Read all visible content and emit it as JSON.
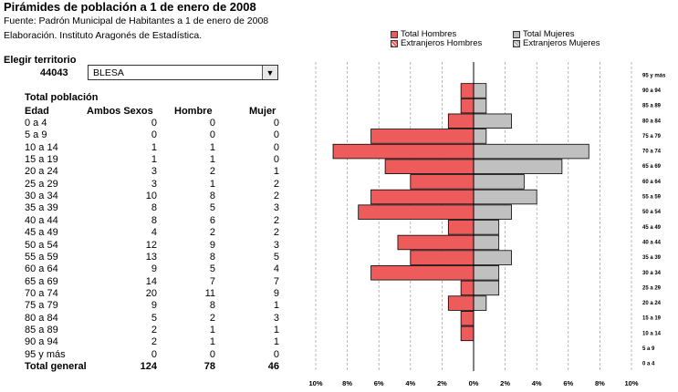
{
  "header": {
    "title": "Pirámides de población a 1 de enero de 2008",
    "source": "Fuente: Padrón Municipal de Habitantes a 1 de enero de 2008",
    "elaboration": "Elaboración. Instituto Aragonés de Estadística."
  },
  "legend": {
    "total_hombres": "Total Hombres",
    "extranjeros_hombres": "Extranjeros Hombres",
    "total_mujeres": "Total Mujeres",
    "extranjeros_mujeres": "Extranjeros Mujeres"
  },
  "selector": {
    "label": "Elegir territorio",
    "code": "44043",
    "value": "BLESA"
  },
  "table": {
    "title": "Total población",
    "headers": {
      "edad": "Edad",
      "ambos": "Ambos Sexos",
      "hombre": "Hombre",
      "mujer": "Mujer"
    },
    "rows": [
      {
        "edad": "0 a 4",
        "ambos": "0",
        "hombre": "0",
        "mujer": "0"
      },
      {
        "edad": "5 a 9",
        "ambos": "0",
        "hombre": "0",
        "mujer": "0"
      },
      {
        "edad": "10 a 14",
        "ambos": "1",
        "hombre": "1",
        "mujer": "0"
      },
      {
        "edad": "15 a 19",
        "ambos": "1",
        "hombre": "1",
        "mujer": "0"
      },
      {
        "edad": "20 a 24",
        "ambos": "3",
        "hombre": "2",
        "mujer": "1"
      },
      {
        "edad": "25 a 29",
        "ambos": "3",
        "hombre": "1",
        "mujer": "2"
      },
      {
        "edad": "30 a 34",
        "ambos": "10",
        "hombre": "8",
        "mujer": "2"
      },
      {
        "edad": "35 a 39",
        "ambos": "8",
        "hombre": "5",
        "mujer": "3"
      },
      {
        "edad": "40 a 44",
        "ambos": "8",
        "hombre": "6",
        "mujer": "2"
      },
      {
        "edad": "45 a 49",
        "ambos": "4",
        "hombre": "2",
        "mujer": "2"
      },
      {
        "edad": "50 a 54",
        "ambos": "12",
        "hombre": "9",
        "mujer": "3"
      },
      {
        "edad": "55 a 59",
        "ambos": "13",
        "hombre": "8",
        "mujer": "5"
      },
      {
        "edad": "60 a 64",
        "ambos": "9",
        "hombre": "5",
        "mujer": "4"
      },
      {
        "edad": "65 a 69",
        "ambos": "14",
        "hombre": "7",
        "mujer": "7"
      },
      {
        "edad": "70 a 74",
        "ambos": "20",
        "hombre": "11",
        "mujer": "9"
      },
      {
        "edad": "75 a 79",
        "ambos": "9",
        "hombre": "8",
        "mujer": "1"
      },
      {
        "edad": "80 a 84",
        "ambos": "5",
        "hombre": "2",
        "mujer": "3"
      },
      {
        "edad": "85 a 89",
        "ambos": "2",
        "hombre": "1",
        "mujer": "1"
      },
      {
        "edad": "90 a 94",
        "ambos": "2",
        "hombre": "1",
        "mujer": "1"
      },
      {
        "edad": "95 y más",
        "ambos": "0",
        "hombre": "0",
        "mujer": "0"
      }
    ],
    "total": {
      "edad": "Total general",
      "ambos": "124",
      "hombre": "78",
      "mujer": "46"
    }
  },
  "chart_data": {
    "type": "bar",
    "orientation": "horizontal-pyramid",
    "categories": [
      "0 a 4",
      "5 a 9",
      "10 a 14",
      "15 a 19",
      "20 a 24",
      "25 a 29",
      "30 a 34",
      "35 a 39",
      "40 a 44",
      "45 a 49",
      "50 a 54",
      "55 a 59",
      "60 a 64",
      "65 a 69",
      "70 a 74",
      "75 a 79",
      "80 a 84",
      "85 a 89",
      "90 a 94",
      "95 y más"
    ],
    "age_axis_labels": [
      "0 a 4",
      "5 a 9",
      "10 a 14",
      "15 a 19",
      "20 a 24",
      "25 a 29",
      "30 a 34",
      "35 a 39",
      "40 a 44",
      "45 a 49",
      "50 a 54",
      "55 a 59",
      "60 a 64",
      "65 a 69",
      "70 a 74",
      "75 a 79",
      "80 a 84",
      "85 a 89",
      "90 a 94",
      "95 y más"
    ],
    "series": [
      {
        "name": "Total Hombres",
        "side": "left",
        "color": "#ee5b5b",
        "values": [
          0,
          0,
          0.8,
          0.8,
          1.6,
          0.8,
          6.5,
          4.0,
          4.8,
          1.6,
          7.3,
          6.5,
          4.0,
          5.6,
          8.9,
          6.5,
          1.6,
          0.8,
          0.8,
          0
        ]
      },
      {
        "name": "Total Mujeres",
        "side": "right",
        "color": "#c0c0c0",
        "values": [
          0,
          0,
          0,
          0,
          0.8,
          1.6,
          1.6,
          2.4,
          1.6,
          1.6,
          2.4,
          4.0,
          3.2,
          5.6,
          7.3,
          0.8,
          2.4,
          0.8,
          0.8,
          0
        ]
      }
    ],
    "xlim": [
      -10,
      10
    ],
    "xticks": [
      "10%",
      "8%",
      "6%",
      "4%",
      "2%",
      "0%",
      "2%",
      "4%",
      "6%",
      "8%",
      "10%"
    ],
    "grid": true
  }
}
